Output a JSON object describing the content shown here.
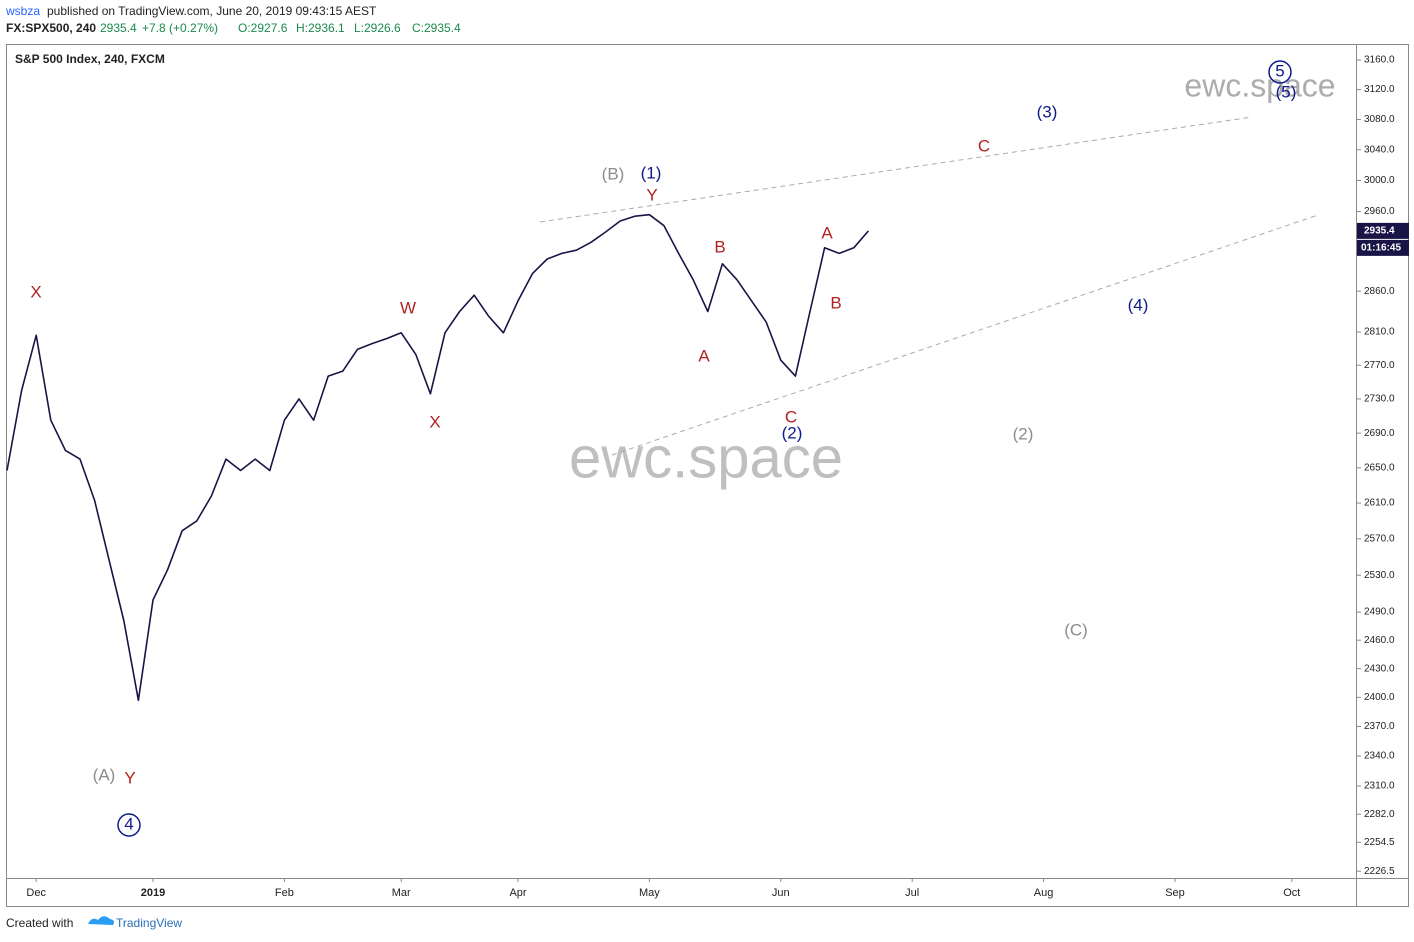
{
  "header": {
    "user": "wsbza",
    "published": "published on TradingView.com, June 20, 2019 09:43:15 AEST",
    "symbol": "FX:SPX500, 240",
    "last": "2935.4",
    "change": "+7.8 (+0.27%)",
    "open": "O:2927.6",
    "high": "H:2936.1",
    "low": "L:2926.6",
    "close": "C:2935.4"
  },
  "footer": {
    "created": "Created with",
    "brand": "TradingView"
  },
  "chart_data": {
    "type": "line",
    "title": "S&P 500 Index, 240, FXCM",
    "color": "#1a1446",
    "log_scale": true,
    "categories": [
      null,
      null,
      "Dec",
      null,
      null,
      null,
      null,
      null,
      null,
      null,
      "2019",
      null,
      null,
      null,
      null,
      null,
      null,
      null,
      null,
      "Feb",
      null,
      null,
      null,
      null,
      null,
      null,
      null,
      "Mar",
      null,
      null,
      null,
      null,
      null,
      null,
      null,
      "Apr",
      null,
      null,
      null,
      null,
      null,
      null,
      null,
      null,
      "May",
      null,
      null,
      null,
      null,
      null,
      null,
      null,
      null,
      "Jun",
      null,
      null,
      null,
      null,
      null,
      null,
      null,
      null,
      "Jul",
      null,
      null,
      null,
      null,
      null,
      null,
      null,
      null,
      "Aug",
      null,
      null,
      null,
      null,
      null,
      null,
      null,
      null,
      "Sep",
      null,
      null,
      null,
      null,
      null,
      null,
      null,
      "Oct",
      null,
      null
    ],
    "values": [
      2647,
      2740,
      2806,
      2705,
      2670,
      2660,
      2613,
      2546,
      2481,
      2397,
      2503,
      2536,
      2579,
      2590,
      2618,
      2660,
      2647,
      2660,
      2647,
      2705,
      2730,
      2705,
      2757,
      2763,
      2789,
      2796,
      2802,
      2809,
      2783,
      2736,
      2809,
      2835,
      2855,
      2829,
      2809,
      2848,
      2882,
      2900,
      2907,
      2911,
      2921,
      2934,
      2948,
      2954,
      2956,
      2942,
      2907,
      2874,
      2835,
      2894,
      2874,
      2848,
      2822,
      2776,
      2757,
      2835,
      2914,
      2907,
      2914,
      2935.4,
      null,
      null,
      null,
      null,
      null,
      null,
      null,
      null,
      null,
      null,
      null,
      null,
      null,
      null,
      null,
      null,
      null,
      null,
      null,
      null,
      null,
      null,
      null,
      null,
      null,
      null,
      null,
      null,
      null,
      null,
      null
    ],
    "ylim": [
      2220,
      3182
    ],
    "yticks": [
      {
        "value": 3160,
        "label": "3160.0"
      },
      {
        "value": 3120,
        "label": "3120.0"
      },
      {
        "value": 3080,
        "label": "3080.0"
      },
      {
        "value": 3040,
        "label": "3040.0"
      },
      {
        "value": 3000,
        "label": "3000.0"
      },
      {
        "value": 2960,
        "label": "2960.0"
      },
      {
        "value": 2860,
        "label": "2860.0"
      },
      {
        "value": 2810,
        "label": "2810.0"
      },
      {
        "value": 2770,
        "label": "2770.0"
      },
      {
        "value": 2730,
        "label": "2730.0"
      },
      {
        "value": 2690,
        "label": "2690.0"
      },
      {
        "value": 2650,
        "label": "2650.0"
      },
      {
        "value": 2610,
        "label": "2610.0"
      },
      {
        "value": 2570,
        "label": "2570.0"
      },
      {
        "value": 2530,
        "label": "2530.0"
      },
      {
        "value": 2490,
        "label": "2490.0"
      },
      {
        "value": 2460,
        "label": "2460.0"
      },
      {
        "value": 2430,
        "label": "2430.0"
      },
      {
        "value": 2400,
        "label": "2400.0"
      },
      {
        "value": 2370,
        "label": "2370.0"
      },
      {
        "value": 2340,
        "label": "2340.0"
      },
      {
        "value": 2310,
        "label": "2310.0"
      },
      {
        "value": 2282,
        "label": "2282.0"
      },
      {
        "value": 2254.5,
        "label": "2254.5"
      },
      {
        "value": 2226.5,
        "label": "2226.5"
      }
    ],
    "last_price": {
      "value": 2935.4,
      "label": "2935.4"
    },
    "countdown": "01:16:45",
    "watermark": "ewc.space",
    "annotations": [
      {
        "text": "X",
        "color": "#b22222"
      },
      {
        "text": "Y",
        "color": "#b22222"
      },
      {
        "text": "(A)",
        "color": "#8c8c8c"
      },
      {
        "text": "4",
        "color": "#0d1a8c"
      },
      {
        "text": "W",
        "color": "#b22222"
      },
      {
        "text": "X",
        "color": "#b22222"
      },
      {
        "text": "(B)",
        "color": "#8c8c8c"
      },
      {
        "text": "(1)",
        "color": "#0d1a8c"
      },
      {
        "text": "Y",
        "color": "#b22222"
      },
      {
        "text": "B",
        "color": "#b22222"
      },
      {
        "text": "A",
        "color": "#b22222"
      },
      {
        "text": "C",
        "color": "#b22222"
      },
      {
        "text": "(2)",
        "color": "#0d1a8c"
      },
      {
        "text": "A",
        "color": "#b22222"
      },
      {
        "text": "B",
        "color": "#b22222"
      },
      {
        "text": "C",
        "color": "#b22222"
      },
      {
        "text": "(3)",
        "color": "#0d1a8c"
      },
      {
        "text": "(4)",
        "color": "#0d1a8c"
      },
      {
        "text": "(2)",
        "color": "#8c8c8c"
      },
      {
        "text": "(C)",
        "color": "#8c8c8c"
      },
      {
        "text": "5",
        "color": "#0d1a8c"
      },
      {
        "text": "(5)",
        "color": "#0d1a8c"
      }
    ]
  }
}
